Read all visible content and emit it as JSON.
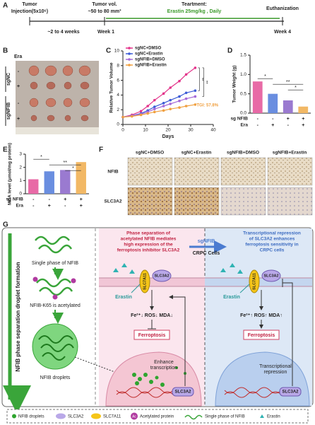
{
  "panel_labels": [
    "A",
    "B",
    "C",
    "D",
    "E",
    "F",
    "G"
  ],
  "timeline": {
    "top_labels": [
      "Tumor",
      "Injection(5x10⁶)",
      "Tumor vol.",
      "~50 to 80 mm³",
      "Teartment:",
      "Erastin  25mg/kg , Daily",
      "Euthanization"
    ],
    "bottom_labels": [
      "~2 to 4 weeks",
      "Week 1",
      "Week 4"
    ]
  },
  "photo": {
    "era_label": "Era",
    "groups": [
      "sgNC",
      "sgNFIB"
    ],
    "signs": [
      "-",
      "+",
      "-",
      "+"
    ]
  },
  "chart_data": [
    {
      "type": "line",
      "ylabel": "Relative Tumor Volume",
      "xlabel": "Days",
      "x": [
        0,
        4,
        8,
        11,
        14,
        18,
        21,
        25,
        28,
        32
      ],
      "series": [
        {
          "name": "sgNC+DMSO",
          "color": "#e3338a",
          "values": [
            1,
            1.3,
            1.8,
            2.5,
            3.3,
            4.2,
            5.0,
            5.9,
            6.8,
            7.7
          ]
        },
        {
          "name": "sgNC+Erastin",
          "color": "#3b5bd6",
          "values": [
            1,
            1.2,
            1.5,
            1.9,
            2.4,
            2.9,
            3.3,
            3.8,
            4.3,
            4.6
          ]
        },
        {
          "name": "sgNFIB+DMSO",
          "color": "#a56ad8",
          "values": [
            1,
            1.2,
            1.4,
            1.7,
            2.1,
            2.5,
            2.8,
            3.2,
            3.5,
            3.8
          ]
        },
        {
          "name": "sgNFIB+Erastin",
          "color": "#f0a040",
          "values": [
            1,
            1.1,
            1.3,
            1.5,
            1.7,
            1.9,
            2.1,
            2.3,
            2.5,
            2.7
          ]
        }
      ],
      "xlim": [
        0,
        40
      ],
      "xticks": [
        0,
        10,
        20,
        30,
        40
      ],
      "ylim": [
        0,
        10
      ],
      "yticks": [
        0,
        2,
        4,
        6,
        8,
        10
      ],
      "annotations": [
        "TGI: 57.8%",
        "**",
        "**"
      ]
    },
    {
      "type": "bar",
      "ylabel": "Tumor Weight (g)",
      "values": [
        0.82,
        0.5,
        0.33,
        0.17
      ],
      "colors": [
        "#e86aa6",
        "#6a8ee0",
        "#9a7ad0",
        "#f2b865"
      ],
      "ylim": [
        0,
        1.5
      ],
      "yticks": [
        {
          "value": 0,
          "label": "0.0"
        },
        0.5,
        {
          "value": 1,
          "label": "1.0"
        },
        1.5
      ],
      "row_labels": [
        "sg NFIB",
        "Era"
      ],
      "rows": [
        [
          "-",
          "-",
          "+",
          "+"
        ],
        [
          "-",
          "+",
          "-",
          "+"
        ]
      ],
      "annotations": [
        "*",
        "**",
        "*"
      ]
    },
    {
      "type": "bar",
      "ylabel": "MDA level (μmol/mg protein)",
      "values": [
        1.1,
        1.7,
        1.8,
        2.4
      ],
      "colors": [
        "#e86aa6",
        "#6a8ee0",
        "#9a7ad0",
        "#f2b865"
      ],
      "ylim": [
        0,
        3
      ],
      "yticks": [
        0,
        1,
        2,
        3
      ],
      "row_labels": [
        "sg NFIB",
        "Era"
      ],
      "rows": [
        [
          "-",
          "-",
          "+",
          "+"
        ],
        [
          "-",
          "+",
          "-",
          "+"
        ]
      ],
      "annotations": [
        "*",
        "**",
        "*"
      ]
    }
  ],
  "ihc": {
    "columns": [
      "sgNC+DMSO",
      "sgNC+Erastin",
      "sgNFIB+DMSO",
      "sgNFIB+Erastin"
    ],
    "rows": [
      "NFIB",
      "SLC3A2"
    ]
  },
  "diagram": {
    "side_label": "NFIB phase separation droplet formation",
    "stages": [
      "Single phase of NFIB",
      "NFIB-K65 is acetylated",
      "NFIB droplets"
    ],
    "left_heading": [
      "Phase separation of",
      "acetylated NFIB mediates",
      "high expression of the",
      "ferroptosis inhibitor SLC3A2"
    ],
    "right_heading": [
      "Transcriptional repression",
      "of SLC3A2 enhances",
      "ferroptosis sensitivity in",
      "CRPC cells"
    ],
    "arrow_top": "sgNFIB",
    "arrow_bottom": "CRPC Cells",
    "transporter": "SLC7A11",
    "subunit": "SLC3A2",
    "drug": "Erastin",
    "left_levels": "Fe²⁺↓ ROS↓ MDA↓",
    "right_levels": "Fe²⁺↑ ROS↑ MDA↑",
    "outcome": "Ferroptosis",
    "left_nucleus": [
      "Enhance",
      "transcription"
    ],
    "right_nucleus": [
      "Transcriptional",
      "repression"
    ],
    "gene": "SLC3A2",
    "acetyl_mark": "Ac",
    "legend": [
      "NFIB droplets",
      "SLC3A2",
      "SLC7A11",
      "Acetylated protein",
      "Single phase of NFIB",
      "Erastin"
    ]
  }
}
